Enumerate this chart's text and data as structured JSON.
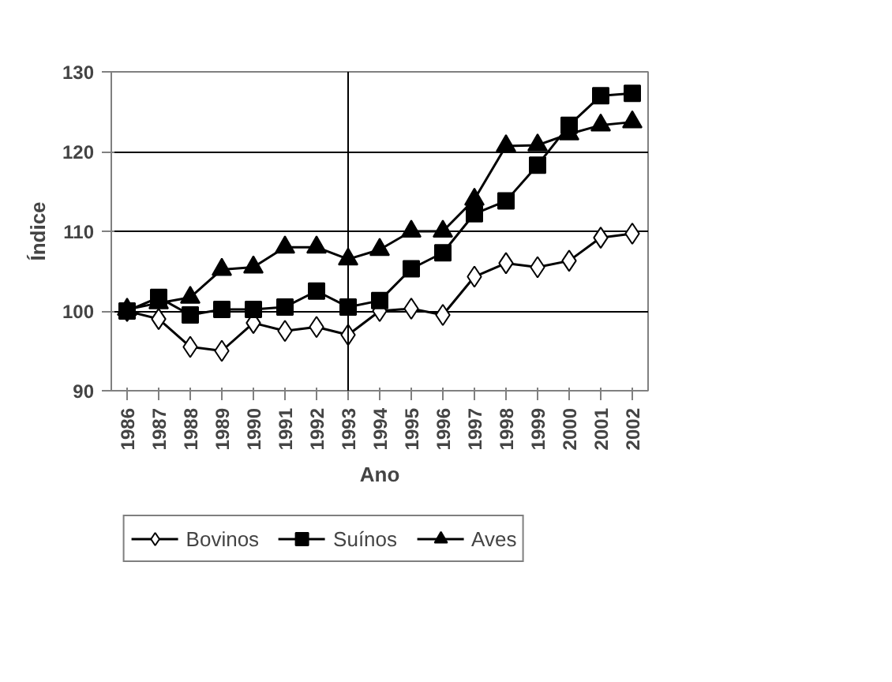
{
  "chart_data": {
    "type": "line",
    "xlabel": "Ano",
    "ylabel": "Índice",
    "categories": [
      "1986",
      "1987",
      "1988",
      "1989",
      "1990",
      "1991",
      "1992",
      "1993",
      "1994",
      "1995",
      "1996",
      "1997",
      "1998",
      "1999",
      "2000",
      "2001",
      "2002"
    ],
    "series": [
      {
        "name": "Bovinos",
        "color": "#000000",
        "marker": "diamond",
        "values": [
          100,
          99,
          95.5,
          95,
          98.5,
          97.5,
          98,
          97,
          100,
          100.3,
          99.5,
          104.3,
          106,
          105.5,
          106.3,
          109.2,
          109.7
        ]
      },
      {
        "name": "Suínos",
        "color": "#000000",
        "marker": "square",
        "values": [
          100,
          101.7,
          99.5,
          100.2,
          100.2,
          100.5,
          102.5,
          100.5,
          101.3,
          105.3,
          107.3,
          112.2,
          113.8,
          118.3,
          123.3,
          127,
          127.3
        ]
      },
      {
        "name": "Aves",
        "color": "#000000",
        "marker": "triangle",
        "values": [
          100.2,
          101,
          101.7,
          105.2,
          105.5,
          108,
          108,
          106.5,
          107.7,
          110,
          110,
          114,
          120.7,
          120.8,
          122.2,
          123.3,
          123.7
        ]
      }
    ],
    "ylim": [
      90,
      130
    ],
    "yticks": [
      90,
      100,
      110,
      120,
      130
    ],
    "grid": "y",
    "legend": "bottom",
    "ref_lines": [
      {
        "axis": "x",
        "value": "1993",
        "color": "#000000"
      }
    ]
  }
}
